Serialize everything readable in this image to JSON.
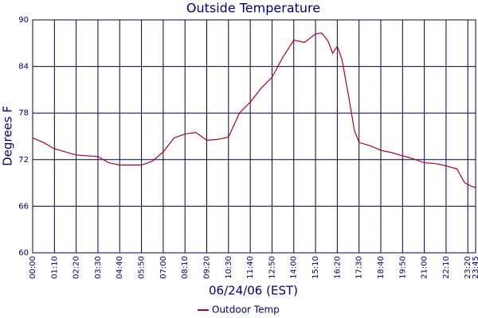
{
  "chart_data": {
    "type": "line",
    "title": "Outside Temperature",
    "x_label": "06/24/06 (EST)",
    "y_label": "Degrees F",
    "x": [
      0,
      35,
      70,
      105,
      140,
      175,
      210,
      245,
      280,
      315,
      350,
      385,
      420,
      455,
      490,
      525,
      560,
      595,
      630,
      665,
      700,
      735,
      770,
      805,
      840,
      875,
      910,
      930,
      950,
      965,
      980,
      995,
      1015,
      1035,
      1050,
      1085,
      1120,
      1155,
      1190,
      1225,
      1260,
      1295,
      1330,
      1365,
      1390,
      1410,
      1425
    ],
    "series": [
      {
        "name": "Outdoor Temp",
        "color": "#b0001a",
        "values": [
          74.8,
          74.2,
          73.4,
          73.0,
          72.6,
          72.5,
          72.4,
          71.6,
          71.3,
          71.3,
          71.3,
          71.8,
          73.0,
          74.8,
          75.3,
          75.5,
          74.5,
          74.6,
          74.9,
          78.0,
          79.4,
          81.2,
          82.6,
          85.2,
          87.4,
          87.1,
          88.2,
          88.3,
          87.3,
          85.7,
          86.6,
          84.9,
          80.5,
          75.8,
          74.2,
          73.8,
          73.2,
          72.9,
          72.5,
          72.1,
          71.6,
          71.5,
          71.2,
          70.8,
          69.0,
          68.6,
          68.4
        ]
      }
    ],
    "xlim": [
      0,
      1425
    ],
    "xticks": [
      {
        "value": 0,
        "label": "00:00"
      },
      {
        "value": 70,
        "label": "01:10"
      },
      {
        "value": 140,
        "label": "02:20"
      },
      {
        "value": 210,
        "label": "03:30"
      },
      {
        "value": 280,
        "label": "04:40"
      },
      {
        "value": 350,
        "label": "05:50"
      },
      {
        "value": 420,
        "label": "07:00"
      },
      {
        "value": 490,
        "label": "08:10"
      },
      {
        "value": 560,
        "label": "09:20"
      },
      {
        "value": 630,
        "label": "10:30"
      },
      {
        "value": 700,
        "label": "11:40"
      },
      {
        "value": 770,
        "label": "12:50"
      },
      {
        "value": 840,
        "label": "14:00"
      },
      {
        "value": 910,
        "label": "15:10"
      },
      {
        "value": 980,
        "label": "16:20"
      },
      {
        "value": 1050,
        "label": "17:30"
      },
      {
        "value": 1120,
        "label": "18:40"
      },
      {
        "value": 1190,
        "label": "19:50"
      },
      {
        "value": 1260,
        "label": "21:00"
      },
      {
        "value": 1330,
        "label": "22:10"
      },
      {
        "value": 1400,
        "label": "23:20"
      },
      {
        "value": 1425,
        "label": "23:45"
      }
    ],
    "ylim": [
      60,
      90
    ],
    "yticks": [
      60,
      66,
      72,
      78,
      84,
      90
    ],
    "grid": true
  }
}
